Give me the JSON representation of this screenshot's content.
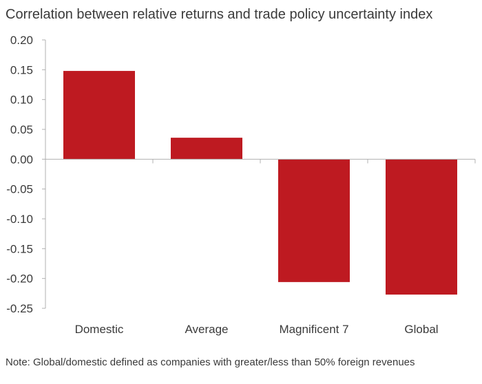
{
  "title": "Correlation between relative returns and trade policy uncertainty index",
  "note": "Note: Global/domestic defined as companies with greater/less than 50% foreign revenues",
  "chart_data": {
    "type": "bar",
    "title": "Correlation between relative returns and trade policy uncertainty index",
    "categories": [
      "Domestic",
      "Average",
      "Magnificent 7",
      "Global"
    ],
    "values": [
      0.148,
      0.036,
      -0.206,
      -0.227
    ],
    "ylim": [
      -0.25,
      0.2
    ],
    "yticks": [
      "0.20",
      "0.15",
      "0.10",
      "0.05",
      "0.00",
      "-0.05",
      "-0.10",
      "-0.15",
      "-0.20",
      "-0.25"
    ],
    "xlabel": "",
    "ylabel": "",
    "grid": false,
    "bar_color": "#be1a21",
    "axis_color": "#b0b0b0"
  }
}
